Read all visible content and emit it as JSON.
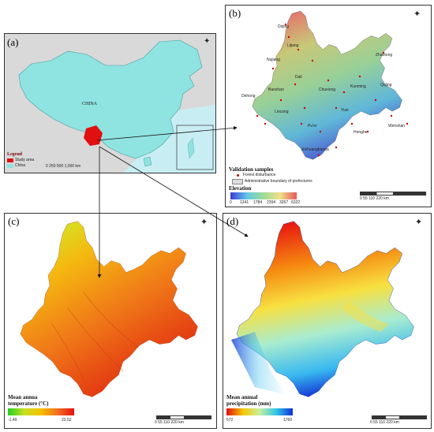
{
  "panels": {
    "a": {
      "label": "(a)",
      "country_label": "CHINA",
      "legend_title": "Legend",
      "legend_items": [
        "Study area",
        "China"
      ],
      "scale_text": "0  250  500  1,000 km"
    },
    "b": {
      "label": "(b)",
      "city_labels": [
        "Lijiang",
        "Nujiang",
        "Dali",
        "Baoshan",
        "Chuxiong",
        "Kunming",
        "Qujing",
        "Yuxi",
        "Pu'er",
        "Wenshan",
        "Honghe",
        "Lincang",
        "Xishuangbanna",
        "Dehong",
        "Zhaotong",
        "Diqing"
      ],
      "validation_title": "Validation samples",
      "validation_items": [
        "Forest disturbance",
        "Administrative boundary of prefectures"
      ],
      "elevation_title": "Elevation",
      "elevation_ticks": [
        "0",
        "1241",
        "1784",
        "2394",
        "3267",
        "6322"
      ],
      "scale_text": "0   55   110        220 km"
    },
    "c": {
      "label": "(c)",
      "legend_title_line1": "Mean annua",
      "legend_title_line2": "temperature (°C)",
      "min_value": "-1.49",
      "max_value": "23.52",
      "scale_text": "0    55    110        220 km"
    },
    "d": {
      "label": "(d)",
      "legend_title_line1": "Mean annual",
      "legend_title_line2": "precipitation (mm)",
      "min_value": "572",
      "max_value": "1760",
      "scale_text": "0    55    110        220 km"
    }
  },
  "colors": {
    "china_fill": "#8fe3e0",
    "study_area": "#e01010",
    "ocean": "#c8eef4",
    "land_other": "#d9d9d9"
  },
  "icons": [
    "north-arrow-icon"
  ]
}
